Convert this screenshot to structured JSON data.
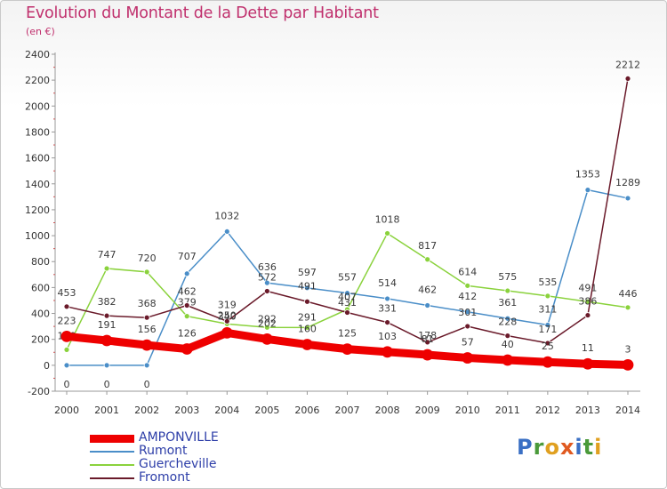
{
  "title": "Evolution du Montant de la Dette par Habitant",
  "subtitle": "(en €)",
  "logo": {
    "text": "Proxiti",
    "letters": [
      {
        "ch": "P",
        "color": "#3a6fc4"
      },
      {
        "ch": "r",
        "color": "#4a9a3a"
      },
      {
        "ch": "o",
        "color": "#e0a020"
      },
      {
        "ch": "x",
        "color": "#e05a20"
      },
      {
        "ch": "i",
        "color": "#3a6fc4"
      },
      {
        "ch": "t",
        "color": "#4a9a3a"
      },
      {
        "ch": "i",
        "color": "#e0a020"
      }
    ]
  },
  "chart_data": {
    "type": "line",
    "title": "Evolution du Montant de la Dette par Habitant",
    "subtitle": "(en €)",
    "xlabel": "",
    "ylabel": "",
    "x": [
      2000,
      2001,
      2002,
      2003,
      2004,
      2005,
      2006,
      2007,
      2008,
      2009,
      2010,
      2011,
      2012,
      2013,
      2014
    ],
    "ylim": [
      -200,
      2400
    ],
    "yticks": [
      -200,
      0,
      200,
      400,
      600,
      800,
      1000,
      1200,
      1400,
      1600,
      1800,
      2000,
      2200,
      2400
    ],
    "grid": false,
    "legend_position": "bottom-left",
    "series": [
      {
        "name": "Rumont",
        "color": "#4a8ec8",
        "values": [
          0,
          0,
          0,
          707,
          1032,
          636,
          597,
          557,
          514,
          462,
          412,
          361,
          311,
          1353,
          1289
        ]
      },
      {
        "name": "Guercheville",
        "color": "#8ad23c",
        "values": [
          120,
          747,
          720,
          379,
          319,
          292,
          291,
          431,
          1018,
          817,
          614,
          575,
          535,
          491,
          446
        ]
      },
      {
        "name": "Fromont",
        "color": "#6a1a2a",
        "values": [
          453,
          382,
          368,
          462,
          340,
          572,
          491,
          407,
          331,
          178,
          301,
          228,
          171,
          386,
          2212
        ]
      },
      {
        "name": "AMPONVILLE",
        "color": "#ee0000",
        "values": [
          223,
          191,
          156,
          126,
          250,
          202,
          160,
          125,
          103,
          81,
          57,
          40,
          25,
          11,
          3
        ]
      }
    ],
    "data_labels": [
      {
        "series": "Rumont",
        "labels": [
          "0",
          "0",
          "0",
          "707",
          "1032",
          "636",
          "597",
          "557",
          "514",
          "462",
          "412",
          "361",
          "311",
          "1353",
          "1289"
        ]
      },
      {
        "series": "Guercheville",
        "labels": [
          "120",
          "747",
          "720",
          "379",
          "319",
          "292",
          "291",
          "431",
          "1018",
          "817",
          "614",
          "575",
          "535",
          "491",
          "446"
        ]
      },
      {
        "series": "Fromont",
        "labels": [
          "453",
          "382",
          "368",
          "462",
          "340",
          "572",
          "491",
          "407",
          "331",
          "178",
          "301",
          "228",
          "171",
          "386",
          "2212"
        ]
      },
      {
        "series": "AMPONVILLE",
        "labels": [
          "223",
          "191",
          "156",
          "126",
          "250",
          "202",
          "160",
          "125",
          "103",
          "81",
          "57",
          "40",
          "25",
          "11",
          "3"
        ]
      }
    ]
  }
}
